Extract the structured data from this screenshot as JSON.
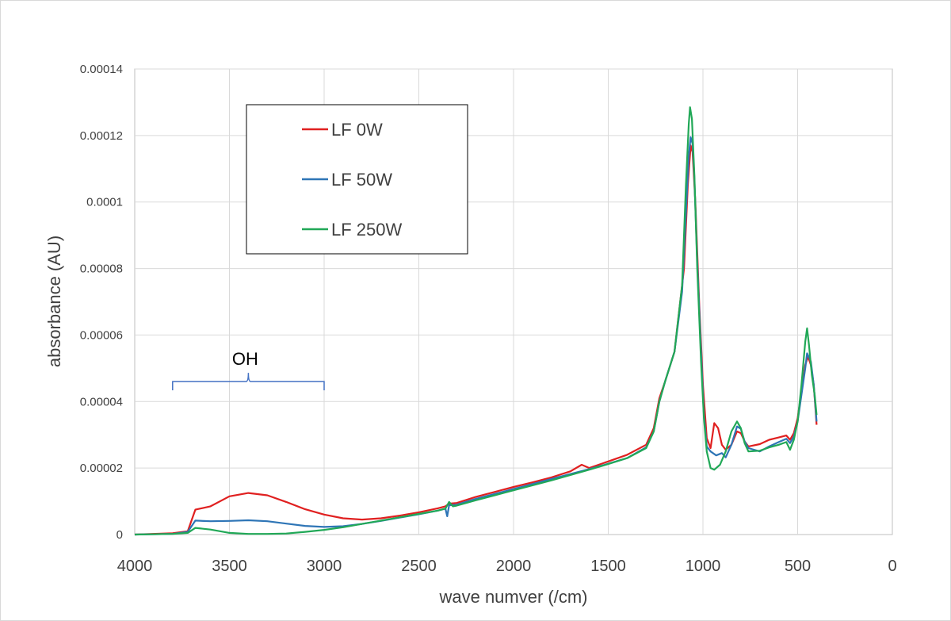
{
  "chart_data": {
    "type": "line",
    "title": "",
    "xlabel": "wave numver (/cm)",
    "ylabel": "absorbance (AU)",
    "xlim": [
      4000,
      0
    ],
    "ylim": [
      0,
      0.00014
    ],
    "x_reversed": true,
    "grid": true,
    "legend_position": "top-left (boxed)",
    "x_ticks": [
      "4000",
      "3500",
      "3000",
      "2500",
      "2000",
      "1500",
      "1000",
      "500",
      "0"
    ],
    "y_ticks": [
      "0",
      "0.00002",
      "0.00004",
      "0.00006",
      "0.00008",
      "0.0001",
      "0.00012",
      "0.00014"
    ],
    "annotations": [
      {
        "text": "OH",
        "x_range": [
          3800,
          3000
        ],
        "y": 4.6e-05
      }
    ],
    "series": [
      {
        "name": "LF 0W",
        "color": "#e02020",
        "points": [
          [
            4000,
            0
          ],
          [
            3800,
            4e-07
          ],
          [
            3720,
            1e-06
          ],
          [
            3680,
            7.5e-06
          ],
          [
            3600,
            8.5e-06
          ],
          [
            3500,
            1.15e-05
          ],
          [
            3400,
            1.25e-05
          ],
          [
            3300,
            1.18e-05
          ],
          [
            3200,
            9.8e-06
          ],
          [
            3100,
            7.6e-06
          ],
          [
            3000,
            6e-06
          ],
          [
            2900,
            4.9e-06
          ],
          [
            2800,
            4.5e-06
          ],
          [
            2700,
            4.9e-06
          ],
          [
            2600,
            5.7e-06
          ],
          [
            2500,
            6.7e-06
          ],
          [
            2400,
            7.9e-06
          ],
          [
            2360,
            8.5e-06
          ],
          [
            2340,
            9.3e-06
          ],
          [
            2300,
            9.5e-06
          ],
          [
            2200,
            1.13e-05
          ],
          [
            2100,
            1.28e-05
          ],
          [
            2000,
            1.43e-05
          ],
          [
            1900,
            1.57e-05
          ],
          [
            1800,
            1.72e-05
          ],
          [
            1700,
            1.9e-05
          ],
          [
            1640,
            2.1e-05
          ],
          [
            1600,
            2e-05
          ],
          [
            1500,
            2.2e-05
          ],
          [
            1400,
            2.4e-05
          ],
          [
            1300,
            2.7e-05
          ],
          [
            1260,
            3.2e-05
          ],
          [
            1230,
            4.1e-05
          ],
          [
            1200,
            4.6e-05
          ],
          [
            1150,
            5.5e-05
          ],
          [
            1100,
            8e-05
          ],
          [
            1080,
            0.000105
          ],
          [
            1065,
            0.000117
          ],
          [
            1055,
            0.000115
          ],
          [
            1040,
            0.0001
          ],
          [
            1020,
            7e-05
          ],
          [
            1000,
            4.5e-05
          ],
          [
            980,
            2.9e-05
          ],
          [
            960,
            2.6e-05
          ],
          [
            940,
            3.35e-05
          ],
          [
            920,
            3.2e-05
          ],
          [
            900,
            2.7e-05
          ],
          [
            880,
            2.55e-05
          ],
          [
            850,
            2.7e-05
          ],
          [
            820,
            3.1e-05
          ],
          [
            800,
            3.05e-05
          ],
          [
            780,
            2.8e-05
          ],
          [
            760,
            2.65e-05
          ],
          [
            700,
            2.72e-05
          ],
          [
            650,
            2.85e-05
          ],
          [
            600,
            2.92e-05
          ],
          [
            560,
            2.98e-05
          ],
          [
            540,
            2.85e-05
          ],
          [
            520,
            3.05e-05
          ],
          [
            500,
            3.5e-05
          ],
          [
            480,
            4.3e-05
          ],
          [
            460,
            5.1e-05
          ],
          [
            445,
            5.35e-05
          ],
          [
            430,
            5.1e-05
          ],
          [
            415,
            4.5e-05
          ],
          [
            400,
            3.3e-05
          ]
        ]
      },
      {
        "name": "LF 50W",
        "color": "#2e75b6",
        "points": [
          [
            4000,
            0
          ],
          [
            3800,
            2e-07
          ],
          [
            3720,
            8e-07
          ],
          [
            3680,
            4.2e-06
          ],
          [
            3600,
            4e-06
          ],
          [
            3500,
            4.1e-06
          ],
          [
            3400,
            4.3e-06
          ],
          [
            3300,
            4e-06
          ],
          [
            3200,
            3.3e-06
          ],
          [
            3100,
            2.6e-06
          ],
          [
            3000,
            2.3e-06
          ],
          [
            2900,
            2.5e-06
          ],
          [
            2800,
            3.2e-06
          ],
          [
            2700,
            4.1e-06
          ],
          [
            2600,
            5.1e-06
          ],
          [
            2500,
            6.1e-06
          ],
          [
            2400,
            7.2e-06
          ],
          [
            2360,
            7.8e-06
          ],
          [
            2350,
            5.5e-06
          ],
          [
            2340,
            8.8e-06
          ],
          [
            2300,
            9e-06
          ],
          [
            2200,
            1.07e-05
          ],
          [
            2100,
            1.22e-05
          ],
          [
            2000,
            1.37e-05
          ],
          [
            1900,
            1.52e-05
          ],
          [
            1800,
            1.67e-05
          ],
          [
            1700,
            1.82e-05
          ],
          [
            1600,
            1.97e-05
          ],
          [
            1500,
            2.13e-05
          ],
          [
            1400,
            2.3e-05
          ],
          [
            1300,
            2.62e-05
          ],
          [
            1260,
            3.1e-05
          ],
          [
            1230,
            4e-05
          ],
          [
            1200,
            4.6e-05
          ],
          [
            1150,
            5.5e-05
          ],
          [
            1110,
            7.3e-05
          ],
          [
            1090,
            9.65e-05
          ],
          [
            1075,
            0.000114
          ],
          [
            1065,
            0.0001195
          ],
          [
            1055,
            0.0001175
          ],
          [
            1045,
            0.000107
          ],
          [
            1030,
            8.2e-05
          ],
          [
            1010,
            5.5e-05
          ],
          [
            995,
            3.6e-05
          ],
          [
            980,
            2.65e-05
          ],
          [
            960,
            2.5e-05
          ],
          [
            930,
            2.38e-05
          ],
          [
            900,
            2.45e-05
          ],
          [
            880,
            2.32e-05
          ],
          [
            850,
            2.7e-05
          ],
          [
            820,
            3.25e-05
          ],
          [
            800,
            3.18e-05
          ],
          [
            780,
            2.8e-05
          ],
          [
            760,
            2.6e-05
          ],
          [
            700,
            2.5e-05
          ],
          [
            650,
            2.65e-05
          ],
          [
            600,
            2.78e-05
          ],
          [
            560,
            2.88e-05
          ],
          [
            540,
            2.75e-05
          ],
          [
            520,
            2.95e-05
          ],
          [
            500,
            3.4e-05
          ],
          [
            480,
            4.2e-05
          ],
          [
            460,
            5e-05
          ],
          [
            450,
            5.45e-05
          ],
          [
            430,
            5.2e-05
          ],
          [
            415,
            4.5e-05
          ],
          [
            400,
            3.4e-05
          ]
        ]
      },
      {
        "name": "LF 250W",
        "color": "#21a857",
        "points": [
          [
            4000,
            0
          ],
          [
            3800,
            2e-07
          ],
          [
            3720,
            5e-07
          ],
          [
            3680,
            2e-06
          ],
          [
            3600,
            1.5e-06
          ],
          [
            3500,
            5e-07
          ],
          [
            3400,
            2e-07
          ],
          [
            3300,
            2e-07
          ],
          [
            3200,
            3e-07
          ],
          [
            3100,
            8e-07
          ],
          [
            3000,
            1.4e-06
          ],
          [
            2900,
            2.2e-06
          ],
          [
            2800,
            3.2e-06
          ],
          [
            2700,
            4.2e-06
          ],
          [
            2600,
            5.2e-06
          ],
          [
            2500,
            6.2e-06
          ],
          [
            2400,
            7.2e-06
          ],
          [
            2360,
            7.8e-06
          ],
          [
            2340,
            9.8e-06
          ],
          [
            2320,
            8.5e-06
          ],
          [
            2300,
            8.7e-06
          ],
          [
            2200,
            1.03e-05
          ],
          [
            2100,
            1.18e-05
          ],
          [
            2000,
            1.33e-05
          ],
          [
            1900,
            1.48e-05
          ],
          [
            1800,
            1.63e-05
          ],
          [
            1700,
            1.79e-05
          ],
          [
            1600,
            1.95e-05
          ],
          [
            1500,
            2.12e-05
          ],
          [
            1400,
            2.3e-05
          ],
          [
            1300,
            2.6e-05
          ],
          [
            1260,
            3.1e-05
          ],
          [
            1230,
            4e-05
          ],
          [
            1200,
            4.6e-05
          ],
          [
            1150,
            5.5e-05
          ],
          [
            1110,
            7.5e-05
          ],
          [
            1090,
            0.000105
          ],
          [
            1075,
            0.0001235
          ],
          [
            1068,
            0.0001285
          ],
          [
            1058,
            0.000125
          ],
          [
            1045,
            0.000108
          ],
          [
            1030,
            8e-05
          ],
          [
            1010,
            5.2e-05
          ],
          [
            995,
            3.5e-05
          ],
          [
            980,
            2.5e-05
          ],
          [
            960,
            2e-05
          ],
          [
            940,
            1.95e-05
          ],
          [
            910,
            2.1e-05
          ],
          [
            880,
            2.5e-05
          ],
          [
            850,
            3.1e-05
          ],
          [
            820,
            3.4e-05
          ],
          [
            800,
            3.2e-05
          ],
          [
            780,
            2.75e-05
          ],
          [
            760,
            2.5e-05
          ],
          [
            700,
            2.52e-05
          ],
          [
            650,
            2.62e-05
          ],
          [
            600,
            2.7e-05
          ],
          [
            560,
            2.78e-05
          ],
          [
            540,
            2.55e-05
          ],
          [
            520,
            2.85e-05
          ],
          [
            500,
            3.4e-05
          ],
          [
            480,
            4.5e-05
          ],
          [
            460,
            5.8e-05
          ],
          [
            450,
            6.2e-05
          ],
          [
            440,
            5.7e-05
          ],
          [
            425,
            4.8e-05
          ],
          [
            410,
            4.2e-05
          ],
          [
            400,
            3.6e-05
          ]
        ]
      }
    ]
  }
}
